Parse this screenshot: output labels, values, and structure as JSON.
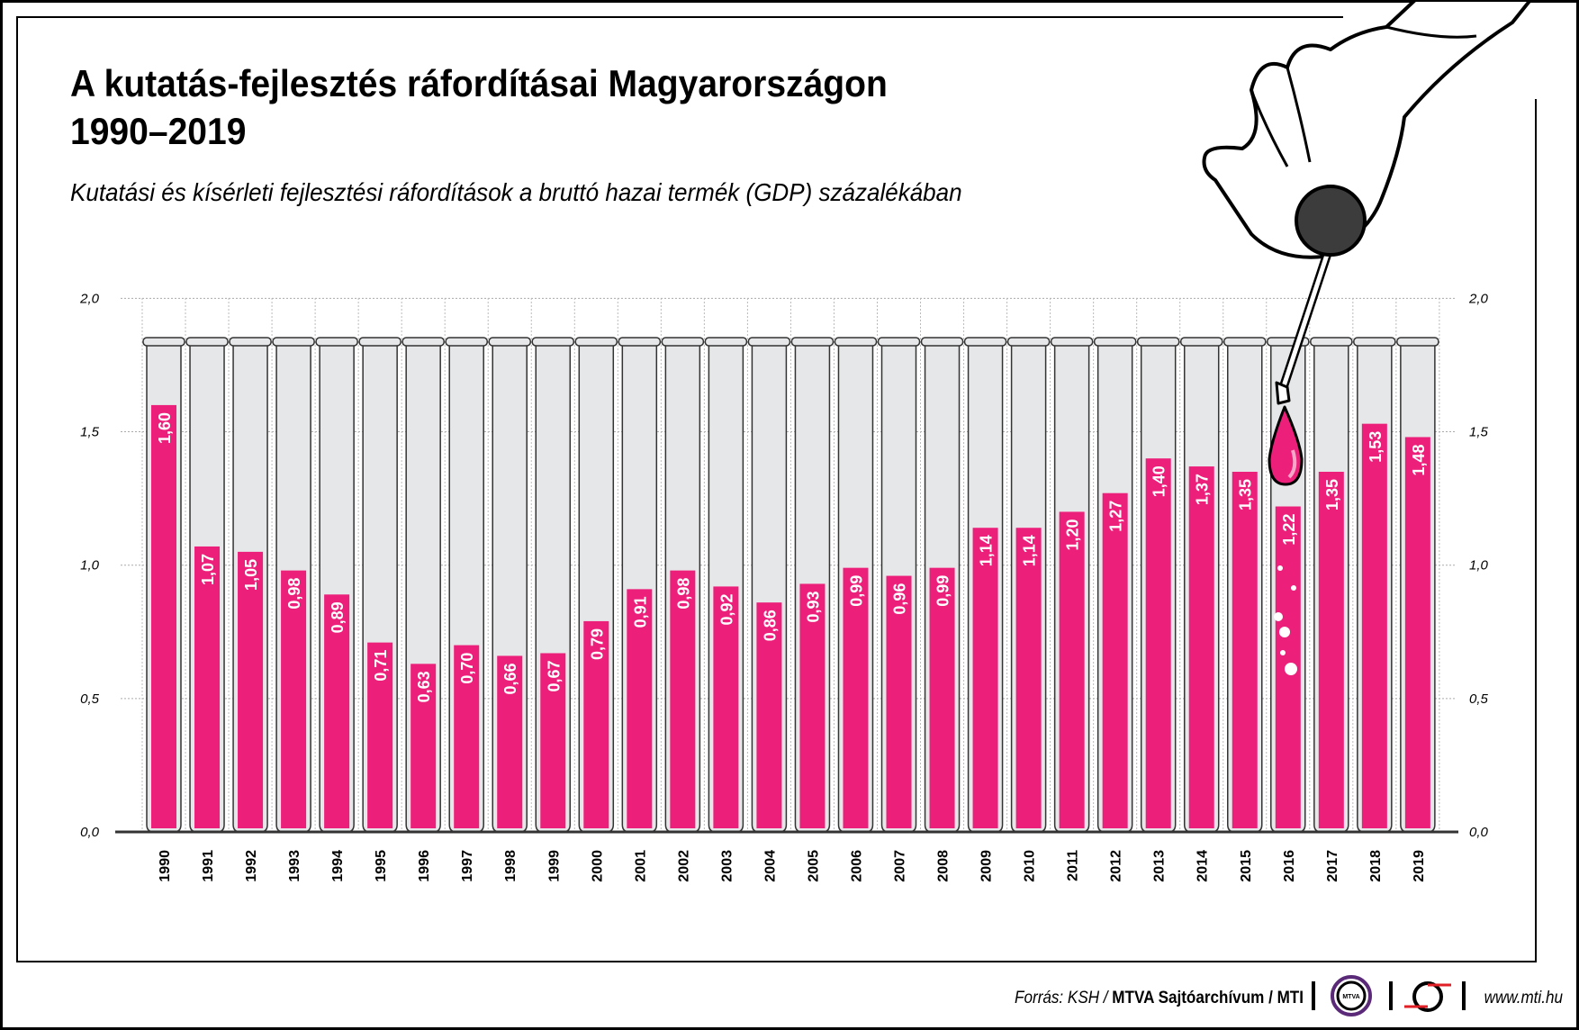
{
  "title_line1": "A kutatás-fejlesztés ráfordításai Magyarországon",
  "title_line2": "1990–2019",
  "subtitle": "Kutatási és kísérleti fejlesztési ráfordítások a bruttó hazai termék (GDP) százalékában",
  "footer": {
    "source_prefix": "Forrás: KSH / ",
    "source_bold": "MTVA Sajtóarchívum / MTI",
    "logo_mtva": "MTVA",
    "website": "www.mti.hu"
  },
  "colors": {
    "bar": "#EC1F7A",
    "tube": "#E6E7E8",
    "text": "#000000"
  },
  "chart_data": {
    "type": "bar",
    "title": "A kutatás-fejlesztés ráfordításai Magyarországon 1990–2019",
    "subtitle": "Kutatási és kísérleti fejlesztési ráfordítások a bruttó hazai termék (GDP) százalékában",
    "xlabel": "",
    "ylabel": "",
    "ylim": [
      0,
      2.0
    ],
    "yticks": [
      "0,0",
      "0,5",
      "1,0",
      "1,5",
      "2,0"
    ],
    "grid": true,
    "categories": [
      "1990",
      "1991",
      "1992",
      "1993",
      "1994",
      "1995",
      "1996",
      "1997",
      "1998",
      "1999",
      "2000",
      "2001",
      "2002",
      "2003",
      "2004",
      "2005",
      "2006",
      "2007",
      "2008",
      "2009",
      "2010",
      "2011",
      "2012",
      "2013",
      "2014",
      "2015",
      "2016",
      "2017",
      "2018",
      "2019"
    ],
    "values": [
      1.6,
      1.07,
      1.05,
      0.98,
      0.89,
      0.71,
      0.63,
      0.7,
      0.66,
      0.67,
      0.79,
      0.91,
      0.98,
      0.92,
      0.86,
      0.93,
      0.99,
      0.96,
      0.99,
      1.14,
      1.14,
      1.2,
      1.27,
      1.4,
      1.37,
      1.35,
      1.22,
      1.35,
      1.53,
      1.48
    ],
    "labels": [
      "1,60",
      "1,07",
      "1,05",
      "0,98",
      "0,89",
      "0,71",
      "0,63",
      "0,70",
      "0,66",
      "0,67",
      "0,79",
      "0,91",
      "0,98",
      "0,92",
      "0,86",
      "0,93",
      "0,99",
      "0,96",
      "0,99",
      "1,14",
      "1,14",
      "1,20",
      "1,27",
      "1,40",
      "1,37",
      "1,35",
      "1,22",
      "1,35",
      "1,53",
      "1,48"
    ]
  }
}
